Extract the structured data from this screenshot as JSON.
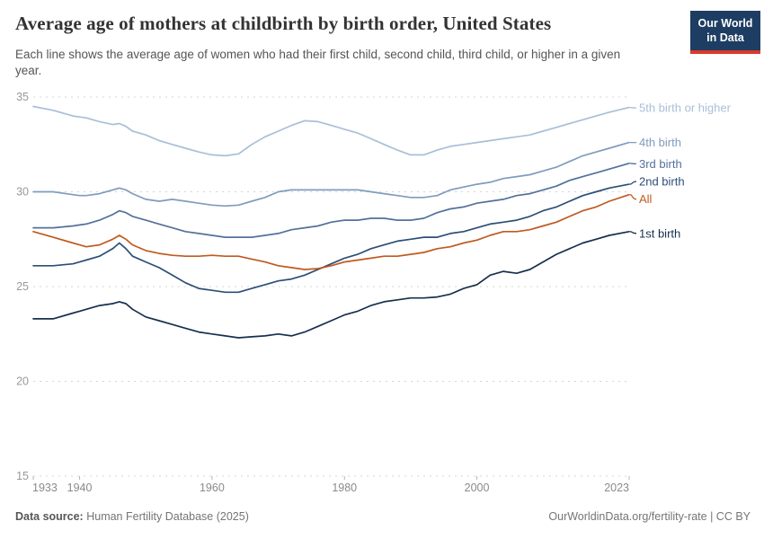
{
  "header": {
    "title": "Average age of mothers at childbirth by birth order, United States",
    "subtitle": "Each line shows the average age of women who had their first child, second child, third child, or higher in a given year.",
    "logo": {
      "line1": "Our World",
      "line2": "in Data",
      "bg_color": "#1d3d63",
      "accent_color": "#d93a2d"
    }
  },
  "chart_data": {
    "type": "line",
    "title": "Average age of mothers at childbirth by birth order, United States",
    "xlabel": "",
    "ylabel": "",
    "grid": "horizontal-dashed",
    "legend_position": "right-of-lines",
    "xlim": [
      1933,
      2023
    ],
    "ylim": [
      15,
      35
    ],
    "x_ticks": [
      1933,
      1940,
      1960,
      1980,
      2000,
      2023
    ],
    "y_ticks": [
      15,
      20,
      25,
      30,
      35
    ],
    "x": [
      1933,
      1936,
      1939,
      1940,
      1941,
      1943,
      1945,
      1946,
      1947,
      1948,
      1950,
      1952,
      1954,
      1956,
      1958,
      1960,
      1962,
      1964,
      1966,
      1968,
      1970,
      1972,
      1974,
      1976,
      1978,
      1980,
      1982,
      1984,
      1986,
      1988,
      1990,
      1992,
      1994,
      1996,
      1998,
      2000,
      2002,
      2004,
      2006,
      2008,
      2010,
      2012,
      2014,
      2016,
      2018,
      2020,
      2023
    ],
    "series": [
      {
        "name": "5th birth or higher",
        "color": "#a9bfd8",
        "values": [
          34.5,
          34.3,
          34.0,
          33.95,
          33.9,
          33.7,
          33.55,
          33.6,
          33.45,
          33.2,
          33.0,
          32.7,
          32.5,
          32.3,
          32.1,
          31.95,
          31.9,
          32.0,
          32.5,
          32.9,
          33.2,
          33.5,
          33.75,
          33.7,
          33.5,
          33.3,
          33.1,
          32.8,
          32.5,
          32.2,
          31.95,
          31.95,
          32.2,
          32.4,
          32.5,
          32.6,
          32.7,
          32.8,
          32.9,
          33.0,
          33.2,
          33.4,
          33.6,
          33.8,
          34.0,
          34.2,
          34.45
        ]
      },
      {
        "name": "4th birth",
        "color": "#7f9cbd",
        "values": [
          30.0,
          30.0,
          29.85,
          29.8,
          29.8,
          29.9,
          30.1,
          30.2,
          30.1,
          29.9,
          29.6,
          29.5,
          29.6,
          29.5,
          29.4,
          29.3,
          29.25,
          29.3,
          29.5,
          29.7,
          30.0,
          30.1,
          30.1,
          30.1,
          30.1,
          30.1,
          30.1,
          30.0,
          29.9,
          29.8,
          29.7,
          29.7,
          29.8,
          30.1,
          30.25,
          30.4,
          30.5,
          30.7,
          30.8,
          30.9,
          31.1,
          31.3,
          31.6,
          31.9,
          32.1,
          32.3,
          32.6
        ]
      },
      {
        "name": "3rd birth",
        "color": "#53719b",
        "values": [
          28.1,
          28.1,
          28.2,
          28.25,
          28.3,
          28.5,
          28.8,
          29.0,
          28.9,
          28.7,
          28.5,
          28.3,
          28.1,
          27.9,
          27.8,
          27.7,
          27.6,
          27.6,
          27.6,
          27.7,
          27.8,
          28.0,
          28.1,
          28.2,
          28.4,
          28.5,
          28.5,
          28.6,
          28.6,
          28.5,
          28.5,
          28.6,
          28.9,
          29.1,
          29.2,
          29.4,
          29.5,
          29.6,
          29.8,
          29.9,
          30.1,
          30.3,
          30.6,
          30.8,
          31.0,
          31.2,
          31.5
        ]
      },
      {
        "name": "2nd birth",
        "color": "#2c4e77",
        "values": [
          26.1,
          26.1,
          26.2,
          26.3,
          26.4,
          26.6,
          27.0,
          27.3,
          27.0,
          26.6,
          26.3,
          26.0,
          25.6,
          25.2,
          24.9,
          24.8,
          24.7,
          24.7,
          24.9,
          25.1,
          25.3,
          25.4,
          25.6,
          25.9,
          26.2,
          26.5,
          26.7,
          27.0,
          27.2,
          27.4,
          27.5,
          27.6,
          27.6,
          27.8,
          27.9,
          28.1,
          28.3,
          28.4,
          28.5,
          28.7,
          29.0,
          29.2,
          29.5,
          29.8,
          30.0,
          30.2,
          30.4
        ]
      },
      {
        "name": "All",
        "color": "#bf5a1f",
        "values": [
          27.9,
          27.6,
          27.3,
          27.2,
          27.1,
          27.2,
          27.5,
          27.7,
          27.5,
          27.2,
          26.9,
          26.75,
          26.65,
          26.6,
          26.6,
          26.65,
          26.6,
          26.6,
          26.45,
          26.3,
          26.1,
          26.0,
          25.9,
          25.95,
          26.1,
          26.3,
          26.4,
          26.5,
          26.6,
          26.6,
          26.7,
          26.8,
          27.0,
          27.1,
          27.3,
          27.45,
          27.7,
          27.9,
          27.9,
          28.0,
          28.2,
          28.4,
          28.7,
          29.0,
          29.2,
          29.5,
          29.85
        ]
      },
      {
        "name": "1st birth",
        "color": "#16304d",
        "values": [
          23.3,
          23.3,
          23.6,
          23.7,
          23.8,
          24.0,
          24.1,
          24.2,
          24.1,
          23.8,
          23.4,
          23.2,
          23.0,
          22.8,
          22.6,
          22.5,
          22.4,
          22.3,
          22.35,
          22.4,
          22.5,
          22.4,
          22.6,
          22.9,
          23.2,
          23.5,
          23.7,
          24.0,
          24.2,
          24.3,
          24.4,
          24.4,
          24.45,
          24.6,
          24.9,
          25.1,
          25.6,
          25.8,
          25.7,
          25.9,
          26.3,
          26.7,
          27.0,
          27.3,
          27.5,
          27.7,
          27.9
        ]
      }
    ]
  },
  "footer": {
    "source_label": "Data source:",
    "source_value": "Human Fertility Database (2025)",
    "credit": "OurWorldinData.org/fertility-rate | CC BY"
  }
}
